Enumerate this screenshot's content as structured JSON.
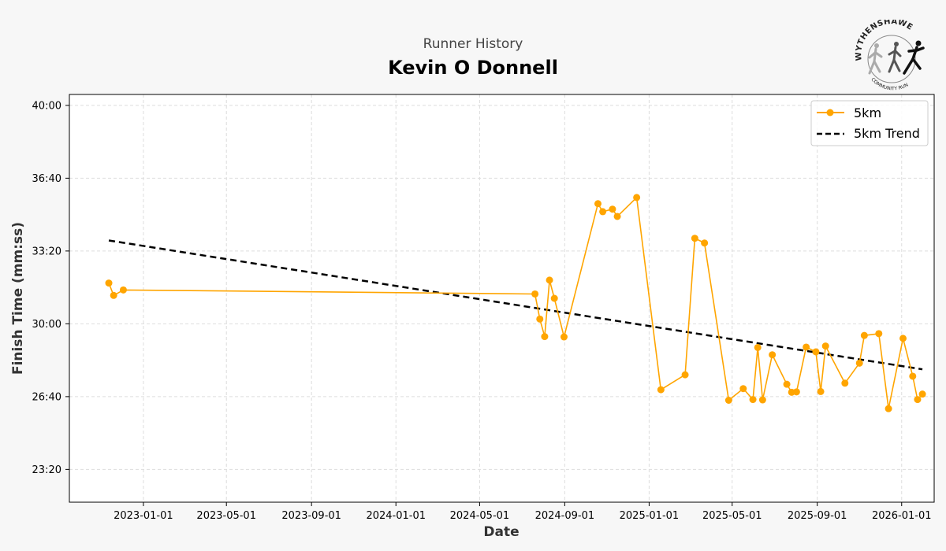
{
  "page": {
    "subtitle": "Runner History",
    "title": "Kevin O Donnell",
    "logo": {
      "icon": "runners-logo-icon",
      "top_text": "WYTHENSHAWE",
      "bottom_text": "COMMUNITY RUN"
    }
  },
  "chart_data": {
    "type": "line",
    "title": "Kevin O Donnell",
    "subtitle": "Runner History",
    "xlabel": "Date",
    "ylabel": "Finish Time (mm:ss)",
    "xlim": [
      "2022-09-16",
      "2026-02-17"
    ],
    "ylim": [
      "21:50",
      "40:30"
    ],
    "x_ticks": [
      "2023-01-01",
      "2023-05-01",
      "2023-09-01",
      "2024-01-01",
      "2024-05-01",
      "2024-09-01",
      "2025-01-01",
      "2025-05-01",
      "2025-09-01",
      "2026-01-01"
    ],
    "y_ticks": [
      "23:20",
      "26:40",
      "30:00",
      "33:20",
      "36:40",
      "40:00"
    ],
    "grid": true,
    "legend_position": "top-right",
    "colors": {
      "series": "#FFA500",
      "trend": "#000000"
    },
    "series": [
      {
        "name": "5km",
        "style": "line-with-markers",
        "points": [
          {
            "x": "2022-11-12",
            "y": "31:52"
          },
          {
            "x": "2022-11-19",
            "y": "31:18"
          },
          {
            "x": "2022-12-03",
            "y": "31:33"
          },
          {
            "x": "2024-07-20",
            "y": "31:22"
          },
          {
            "x": "2024-07-27",
            "y": "30:13"
          },
          {
            "x": "2024-08-03",
            "y": "29:25"
          },
          {
            "x": "2024-08-10",
            "y": "32:00"
          },
          {
            "x": "2024-08-17",
            "y": "31:10"
          },
          {
            "x": "2024-08-31",
            "y": "29:24"
          },
          {
            "x": "2024-10-19",
            "y": "35:30"
          },
          {
            "x": "2024-10-26",
            "y": "35:08"
          },
          {
            "x": "2024-11-09",
            "y": "35:15"
          },
          {
            "x": "2024-11-16",
            "y": "34:55"
          },
          {
            "x": "2024-12-14",
            "y": "35:47"
          },
          {
            "x": "2025-01-18",
            "y": "26:59"
          },
          {
            "x": "2025-02-22",
            "y": "27:40"
          },
          {
            "x": "2025-03-08",
            "y": "33:55"
          },
          {
            "x": "2025-03-22",
            "y": "33:42"
          },
          {
            "x": "2025-04-26",
            "y": "26:30"
          },
          {
            "x": "2025-05-17",
            "y": "27:02"
          },
          {
            "x": "2025-05-31",
            "y": "26:32"
          },
          {
            "x": "2025-06-07",
            "y": "28:55"
          },
          {
            "x": "2025-06-14",
            "y": "26:31"
          },
          {
            "x": "2025-06-28",
            "y": "28:35"
          },
          {
            "x": "2025-07-19",
            "y": "27:14"
          },
          {
            "x": "2025-07-26",
            "y": "26:52"
          },
          {
            "x": "2025-08-02",
            "y": "26:53"
          },
          {
            "x": "2025-08-16",
            "y": "28:56"
          },
          {
            "x": "2025-08-30",
            "y": "28:43"
          },
          {
            "x": "2025-09-06",
            "y": "26:54"
          },
          {
            "x": "2025-09-13",
            "y": "28:59"
          },
          {
            "x": "2025-10-11",
            "y": "27:17"
          },
          {
            "x": "2025-11-01",
            "y": "28:12"
          },
          {
            "x": "2025-11-08",
            "y": "29:28"
          },
          {
            "x": "2025-11-29",
            "y": "29:33"
          },
          {
            "x": "2025-12-13",
            "y": "26:07"
          },
          {
            "x": "2026-01-03",
            "y": "29:20"
          },
          {
            "x": "2026-01-17",
            "y": "27:36"
          },
          {
            "x": "2026-01-24",
            "y": "26:32"
          },
          {
            "x": "2026-01-31",
            "y": "26:47"
          }
        ]
      },
      {
        "name": "5km Trend",
        "style": "dashed",
        "points": [
          {
            "x": "2022-11-12",
            "y": "33:49"
          },
          {
            "x": "2026-01-31",
            "y": "27:55"
          }
        ]
      }
    ]
  }
}
